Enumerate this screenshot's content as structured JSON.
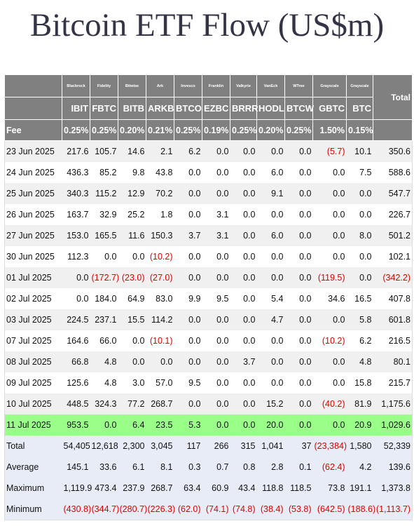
{
  "title": "Bitcoin ETF Flow (US$m)",
  "table": {
    "issuers": [
      "Blackrock",
      "Fidelity",
      "Bitwise",
      "Ark",
      "Invesco",
      "Franklin",
      "Valkyrie",
      "VanEck",
      "WTree",
      "Grayscale",
      "Grayscale"
    ],
    "total_header": "Total",
    "tickers": [
      "IBIT",
      "FBTC",
      "BITB",
      "ARKB",
      "BTCO",
      "EZBC",
      "BRRR",
      "HODL",
      "BTCW",
      "GBTC",
      "BTC"
    ],
    "fee_label": "Fee",
    "fees": [
      "0.25%",
      "0.25%",
      "0.20%",
      "0.21%",
      "0.25%",
      "0.19%",
      "0.25%",
      "0.20%",
      "0.25%",
      "1.50%",
      "0.15%"
    ],
    "rows": [
      [
        "23 Jun 2025",
        "217.6",
        "105.7",
        "14.6",
        "2.1",
        "6.2",
        "0.0",
        "0.0",
        "0.0",
        "0.0",
        "(5.7)",
        "10.1",
        "350.6"
      ],
      [
        "24 Jun 2025",
        "436.3",
        "85.2",
        "9.8",
        "43.8",
        "0.0",
        "0.0",
        "0.0",
        "6.0",
        "0.0",
        "0.0",
        "7.5",
        "588.6"
      ],
      [
        "25 Jun 2025",
        "340.3",
        "115.2",
        "12.9",
        "70.2",
        "0.0",
        "0.0",
        "0.0",
        "9.1",
        "0.0",
        "0.0",
        "0.0",
        "547.7"
      ],
      [
        "26 Jun 2025",
        "163.7",
        "32.9",
        "25.2",
        "1.8",
        "0.0",
        "3.1",
        "0.0",
        "0.0",
        "0.0",
        "0.0",
        "0.0",
        "226.7"
      ],
      [
        "27 Jun 2025",
        "153.0",
        "165.5",
        "11.6",
        "150.3",
        "3.7",
        "3.1",
        "0.0",
        "6.0",
        "0.0",
        "0.0",
        "8.0",
        "501.2"
      ],
      [
        "30 Jun 2025",
        "112.3",
        "0.0",
        "0.0",
        "(10.2)",
        "0.0",
        "0.0",
        "0.0",
        "0.0",
        "0.0",
        "0.0",
        "0.0",
        "102.1"
      ],
      [
        "01 Jul 2025",
        "0.0",
        "(172.7)",
        "(23.0)",
        "(27.0)",
        "0.0",
        "0.0",
        "0.0",
        "0.0",
        "0.0",
        "(119.5)",
        "0.0",
        "(342.2)"
      ],
      [
        "02 Jul 2025",
        "0.0",
        "184.0",
        "64.9",
        "83.0",
        "9.9",
        "9.5",
        "0.0",
        "5.4",
        "0.0",
        "34.6",
        "16.5",
        "407.8"
      ],
      [
        "03 Jul 2025",
        "224.5",
        "237.1",
        "15.5",
        "114.2",
        "0.0",
        "0.0",
        "0.0",
        "4.7",
        "0.0",
        "0.0",
        "5.8",
        "601.8"
      ],
      [
        "07 Jul 2025",
        "164.6",
        "66.0",
        "0.0",
        "(10.1)",
        "0.0",
        "0.0",
        "0.0",
        "0.0",
        "0.0",
        "(10.2)",
        "6.2",
        "216.5"
      ],
      [
        "08 Jul 2025",
        "66.8",
        "4.8",
        "0.0",
        "0.0",
        "0.0",
        "0.0",
        "3.7",
        "0.0",
        "0.0",
        "0.0",
        "4.8",
        "80.1"
      ],
      [
        "09 Jul 2025",
        "125.6",
        "4.8",
        "3.0",
        "57.0",
        "9.5",
        "0.0",
        "0.0",
        "0.0",
        "0.0",
        "0.0",
        "15.8",
        "215.7"
      ],
      [
        "10 Jul 2025",
        "448.5",
        "324.3",
        "77.2",
        "268.7",
        "0.0",
        "0.0",
        "0.0",
        "15.2",
        "0.0",
        "(40.2)",
        "81.9",
        "1,175.6"
      ],
      [
        "11 Jul 2025",
        "953.5",
        "0.0",
        "6.4",
        "23.5",
        "5.3",
        "0.0",
        "0.0",
        "20.0",
        "0.0",
        "0.0",
        "20.9",
        "1,029.6"
      ]
    ],
    "summary": [
      [
        "Total",
        "54,405",
        "12,618",
        "2,300",
        "3,045",
        "117",
        "266",
        "315",
        "1,041",
        "37",
        "(23,384)",
        "1,580",
        "52,339"
      ],
      [
        "Average",
        "145.1",
        "33.6",
        "6.1",
        "8.1",
        "0.3",
        "0.7",
        "0.8",
        "2.8",
        "0.1",
        "(62.4)",
        "4.2",
        "139.6"
      ],
      [
        "Maximum",
        "1,119.9",
        "473.4",
        "237.9",
        "268.7",
        "63.4",
        "60.9",
        "43.4",
        "118.8",
        "118.5",
        "73.8",
        "191.1",
        "1,373.8"
      ],
      [
        "Minimum",
        "(430.8)",
        "(344.7)",
        "(280.7)",
        "(226.3)",
        "(62.0)",
        "(74.1)",
        "(74.8)",
        "(38.4)",
        "(53.8)",
        "(642.5)",
        "(188.6)",
        "(1,113.7)"
      ]
    ]
  }
}
